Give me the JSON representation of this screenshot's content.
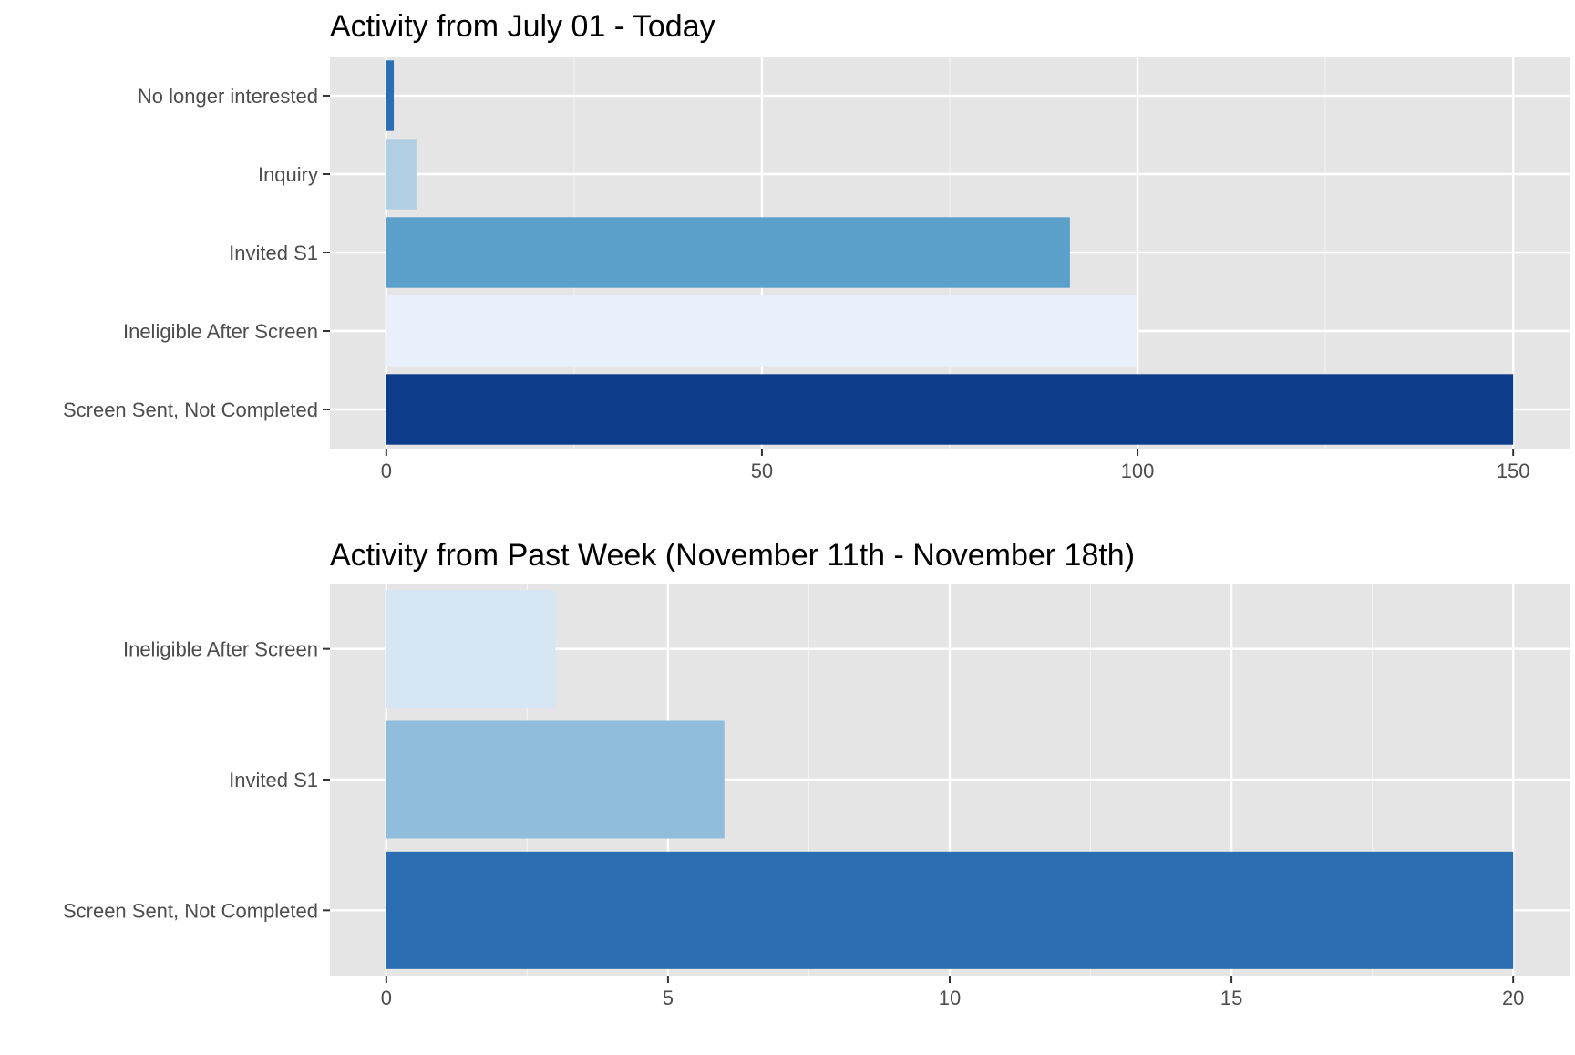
{
  "chart_data": [
    {
      "type": "bar",
      "orientation": "horizontal",
      "title": "Activity from July 01 - Today",
      "categories": [
        "No longer interested",
        "Inquiry",
        "Invited S1",
        "Ineligible After Screen",
        "Screen Sent, Not Completed"
      ],
      "values": [
        1,
        4,
        91,
        100,
        150
      ],
      "colors": [
        "#2b6fb2",
        "#b0cfe3",
        "#5b9fcb",
        "#eaf0fb",
        "#0d3d8a"
      ],
      "xticks": [
        0,
        50,
        100,
        150
      ],
      "xlim": [
        -7.5,
        157.5
      ],
      "grid": true,
      "legend": "none"
    },
    {
      "type": "bar",
      "orientation": "horizontal",
      "title": "Activity from Past Week (November 11th - November 18th)",
      "categories": [
        "Ineligible After Screen",
        "Invited S1",
        "Screen Sent, Not Completed"
      ],
      "values": [
        3,
        6,
        20
      ],
      "colors": [
        "#d6e6f4",
        "#8fbddb",
        "#2b6fb2"
      ],
      "xticks": [
        0,
        5,
        10,
        15,
        20
      ],
      "xlim": [
        -1,
        21
      ],
      "grid": true,
      "legend": "none"
    }
  ]
}
